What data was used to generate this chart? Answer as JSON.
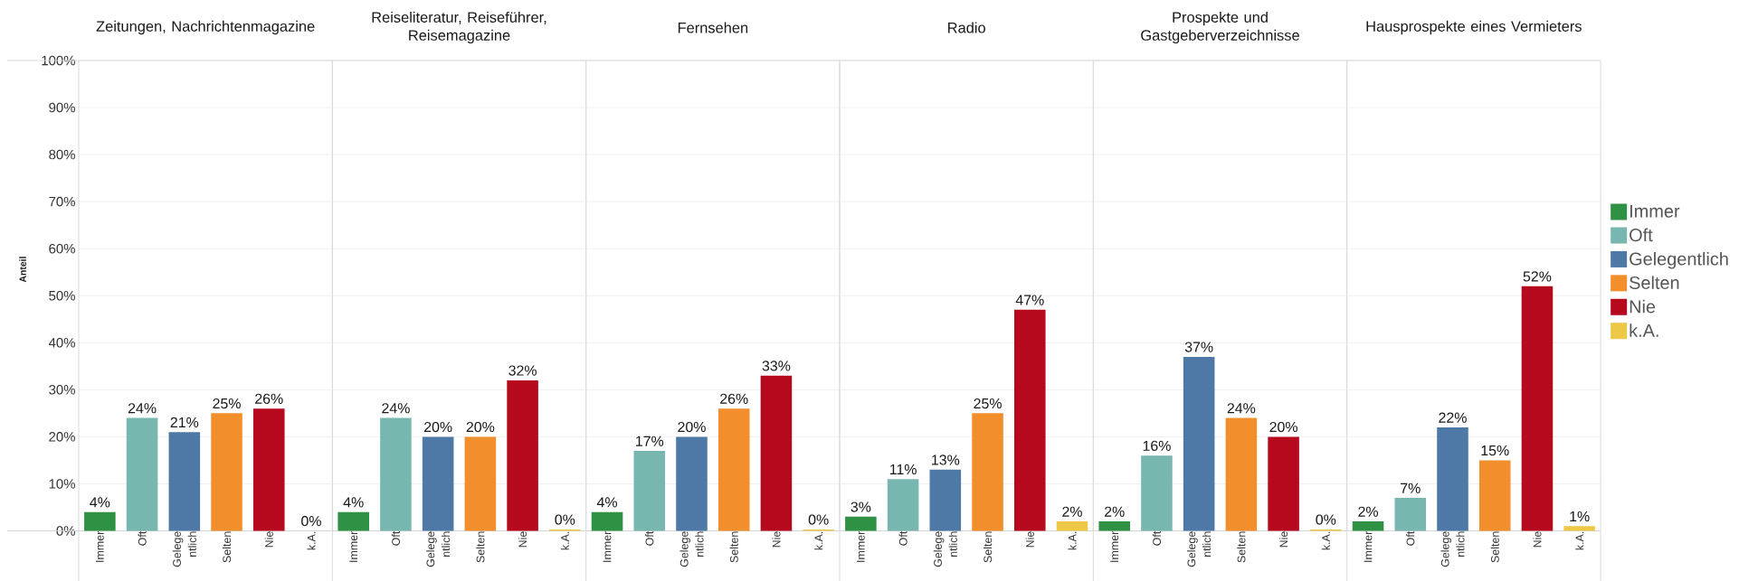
{
  "chart_data": [
    {
      "type": "bar",
      "title": "Zeitungen, Nachrichtenmagazine",
      "ylabel": "Anteil",
      "categories": [
        "Immer",
        "Oft",
        "Gelegentlich",
        "Selten",
        "Nie",
        "k.A."
      ],
      "series": [
        {
          "color": "#2f9144",
          "values": [
            4,
            null,
            null,
            null,
            null,
            null
          ],
          "value_labels": [
            "4%",
            null,
            null,
            null,
            null,
            null
          ]
        },
        {
          "color": "#78b6b0",
          "values": [
            null,
            24,
            null,
            null,
            null,
            null
          ],
          "value_labels": [
            null,
            "24%",
            null,
            null,
            null,
            null
          ]
        },
        {
          "color": "#4e78a6",
          "values": [
            null,
            null,
            21,
            null,
            null,
            null
          ],
          "value_labels": [
            null,
            null,
            "21%",
            null,
            null,
            null
          ]
        },
        {
          "color": "#f28e2c",
          "values": [
            null,
            null,
            null,
            25,
            null,
            null
          ],
          "value_labels": [
            null,
            null,
            null,
            "25%",
            null,
            null
          ]
        },
        {
          "color": "#b6091e",
          "values": [
            null,
            null,
            null,
            null,
            26,
            null
          ],
          "value_labels": [
            null,
            null,
            null,
            null,
            "26%",
            null
          ]
        },
        {
          "color": "#ecc846",
          "values": [
            null,
            null,
            null,
            null,
            null,
            0
          ],
          "value_labels": [
            null,
            null,
            null,
            null,
            null,
            "0%"
          ]
        }
      ],
      "ylim": [
        0,
        100
      ],
      "yticks": [
        {
          "value": 0,
          "label": "0%"
        },
        {
          "value": 10,
          "label": "10%"
        },
        {
          "value": 20,
          "label": "20%"
        },
        {
          "value": 30,
          "label": "30%"
        },
        {
          "value": 40,
          "label": "40%"
        },
        {
          "value": 50,
          "label": "50%"
        },
        {
          "value": 60,
          "label": "60%"
        },
        {
          "value": 70,
          "label": "70%"
        },
        {
          "value": 80,
          "label": "80%"
        },
        {
          "value": 90,
          "label": "90%"
        },
        {
          "value": 100,
          "label": "100%"
        }
      ],
      "grid": "y"
    },
    {
      "type": "bar",
      "title": "Reiseliteratur, Reiseführer, Reisemagazine",
      "categories": [
        "Immer",
        "Oft",
        "Gelegentlich",
        "Selten",
        "Nie",
        "k.A."
      ],
      "series": [
        {
          "color": "#2f9144",
          "values": [
            4,
            null,
            null,
            null,
            null,
            null
          ],
          "value_labels": [
            "4%",
            null,
            null,
            null,
            null,
            null
          ]
        },
        {
          "color": "#78b6b0",
          "values": [
            null,
            24,
            null,
            null,
            null,
            null
          ],
          "value_labels": [
            null,
            "24%",
            null,
            null,
            null,
            null
          ]
        },
        {
          "color": "#4e78a6",
          "values": [
            null,
            null,
            20,
            null,
            null,
            null
          ],
          "value_labels": [
            null,
            null,
            "20%",
            null,
            null,
            null
          ]
        },
        {
          "color": "#f28e2c",
          "values": [
            null,
            null,
            null,
            20,
            null,
            null
          ],
          "value_labels": [
            null,
            null,
            null,
            "20%",
            null,
            null
          ]
        },
        {
          "color": "#b6091e",
          "values": [
            null,
            null,
            null,
            null,
            32,
            null
          ],
          "value_labels": [
            null,
            null,
            null,
            null,
            "32%",
            null
          ]
        },
        {
          "color": "#ecc846",
          "values": [
            null,
            null,
            null,
            null,
            null,
            0.3
          ],
          "value_labels": [
            null,
            null,
            null,
            null,
            null,
            "0%"
          ]
        }
      ],
      "ylim": [
        0,
        100
      ],
      "yticks": [
        0,
        10,
        20,
        30,
        40,
        50,
        60,
        70,
        80,
        90,
        100
      ],
      "grid": "y",
      "tick_labels": "x"
    },
    {
      "type": "bar",
      "title": "Fernsehen",
      "categories": [
        "Immer",
        "Oft",
        "Gelegentlich",
        "Selten",
        "Nie",
        "k.A."
      ],
      "series": [
        {
          "color": "#2f9144",
          "values": [
            4,
            null,
            null,
            null,
            null,
            null
          ],
          "value_labels": [
            "4%",
            null,
            null,
            null,
            null,
            null
          ]
        },
        {
          "color": "#78b6b0",
          "values": [
            null,
            17,
            null,
            null,
            null,
            null
          ],
          "value_labels": [
            null,
            "17%",
            null,
            null,
            null,
            null
          ]
        },
        {
          "color": "#4e78a6",
          "values": [
            null,
            null,
            20,
            null,
            null,
            null
          ],
          "value_labels": [
            null,
            null,
            "20%",
            null,
            null,
            null
          ]
        },
        {
          "color": "#f28e2c",
          "values": [
            null,
            null,
            null,
            26,
            null,
            null
          ],
          "value_labels": [
            null,
            null,
            null,
            "26%",
            null,
            null
          ]
        },
        {
          "color": "#b6091e",
          "values": [
            null,
            null,
            null,
            null,
            33,
            null
          ],
          "value_labels": [
            null,
            null,
            null,
            null,
            "33%",
            null
          ]
        },
        {
          "color": "#ecc846",
          "values": [
            null,
            null,
            null,
            null,
            null,
            0.3
          ],
          "value_labels": [
            null,
            null,
            null,
            null,
            null,
            "0%"
          ]
        }
      ],
      "ylim": [
        0,
        100
      ],
      "yticks": [
        0,
        10,
        20,
        30,
        40,
        50,
        60,
        70,
        80,
        90,
        100
      ],
      "grid": "y",
      "tick_labels": "x"
    },
    {
      "type": "bar",
      "title": "Radio",
      "categories": [
        "Immer",
        "Oft",
        "Gelegentlich",
        "Selten",
        "Nie",
        "k.A."
      ],
      "series": [
        {
          "color": "#2f9144",
          "values": [
            3,
            null,
            null,
            null,
            null,
            null
          ],
          "value_labels": [
            "3%",
            null,
            null,
            null,
            null,
            null
          ]
        },
        {
          "color": "#78b6b0",
          "values": [
            null,
            11,
            null,
            null,
            null,
            null
          ],
          "value_labels": [
            null,
            "11%",
            null,
            null,
            null,
            null
          ]
        },
        {
          "color": "#4e78a6",
          "values": [
            null,
            null,
            13,
            null,
            null,
            null
          ],
          "value_labels": [
            null,
            null,
            "13%",
            null,
            null,
            null
          ]
        },
        {
          "color": "#f28e2c",
          "values": [
            null,
            null,
            null,
            25,
            null,
            null
          ],
          "value_labels": [
            null,
            null,
            null,
            "25%",
            null,
            null
          ]
        },
        {
          "color": "#b6091e",
          "values": [
            null,
            null,
            null,
            null,
            47,
            null
          ],
          "value_labels": [
            null,
            null,
            null,
            null,
            "47%",
            null
          ]
        },
        {
          "color": "#ecc846",
          "values": [
            null,
            null,
            null,
            null,
            null,
            2
          ],
          "value_labels": [
            null,
            null,
            null,
            null,
            null,
            "2%"
          ]
        }
      ],
      "ylim": [
        0,
        100
      ],
      "yticks": [
        0,
        10,
        20,
        30,
        40,
        50,
        60,
        70,
        80,
        90,
        100
      ],
      "grid": "y",
      "tick_labels": "x"
    },
    {
      "type": "bar",
      "title": "Prospekte und Gastgeberverzeichnisse",
      "categories": [
        "Immer",
        "Oft",
        "Gelegentlich",
        "Selten",
        "Nie",
        "k.A."
      ],
      "series": [
        {
          "color": "#2f9144",
          "values": [
            2,
            null,
            null,
            null,
            null,
            null
          ],
          "value_labels": [
            "2%",
            null,
            null,
            null,
            null,
            null
          ]
        },
        {
          "color": "#78b6b0",
          "values": [
            null,
            16,
            null,
            null,
            null,
            null
          ],
          "value_labels": [
            null,
            "16%",
            null,
            null,
            null,
            null
          ]
        },
        {
          "color": "#4e78a6",
          "values": [
            null,
            null,
            37,
            null,
            null,
            null
          ],
          "value_labels": [
            null,
            null,
            "37%",
            null,
            null,
            null
          ]
        },
        {
          "color": "#f28e2c",
          "values": [
            null,
            null,
            null,
            24,
            null,
            null
          ],
          "value_labels": [
            null,
            null,
            null,
            "24%",
            null,
            null
          ]
        },
        {
          "color": "#b6091e",
          "values": [
            null,
            null,
            null,
            null,
            20,
            null
          ],
          "value_labels": [
            null,
            null,
            null,
            null,
            "20%",
            null
          ]
        },
        {
          "color": "#ecc846",
          "values": [
            null,
            null,
            null,
            null,
            null,
            0.3
          ],
          "value_labels": [
            null,
            null,
            null,
            null,
            null,
            "0%"
          ]
        }
      ],
      "ylim": [
        0,
        100
      ],
      "yticks": [
        0,
        10,
        20,
        30,
        40,
        50,
        60,
        70,
        80,
        90,
        100
      ],
      "grid": "y",
      "tick_labels": "x"
    },
    {
      "type": "bar",
      "title": "Hausprospekte eines Vermieters",
      "categories": [
        "Immer",
        "Oft",
        "Gelegentlich",
        "Selten",
        "Nie",
        "k.A."
      ],
      "series": [
        {
          "name": "Immer",
          "color": "#2f9144",
          "values": [
            2,
            null,
            null,
            null,
            null,
            null
          ],
          "value_labels": [
            "2%",
            null,
            null,
            null,
            null,
            null
          ]
        },
        {
          "name": "Oft",
          "color": "#78b6b0",
          "values": [
            null,
            7,
            null,
            null,
            null,
            null
          ],
          "value_labels": [
            null,
            "7%",
            null,
            null,
            null,
            null
          ]
        },
        {
          "name": "Gelegentlich",
          "color": "#4e78a6",
          "values": [
            null,
            null,
            22,
            null,
            null,
            null
          ],
          "value_labels": [
            null,
            null,
            "22%",
            null,
            null,
            null
          ]
        },
        {
          "name": "Selten",
          "color": "#f28e2c",
          "values": [
            null,
            null,
            null,
            15,
            null,
            null
          ],
          "value_labels": [
            null,
            null,
            null,
            "15%",
            null,
            null
          ]
        },
        {
          "name": "Nie",
          "color": "#b6091e",
          "values": [
            null,
            null,
            null,
            null,
            52,
            null
          ],
          "value_labels": [
            null,
            null,
            null,
            null,
            "52%",
            null
          ]
        },
        {
          "name": "k.A.",
          "color": "#ecc846",
          "values": [
            null,
            null,
            null,
            null,
            null,
            1
          ],
          "value_labels": [
            null,
            null,
            null,
            null,
            null,
            "1%"
          ]
        }
      ],
      "ylim": [
        0,
        100
      ],
      "yticks": [
        0,
        10,
        20,
        30,
        40,
        50,
        60,
        70,
        80,
        90,
        100
      ],
      "grid": "y",
      "tick_labels": "x",
      "legend": "right"
    }
  ]
}
